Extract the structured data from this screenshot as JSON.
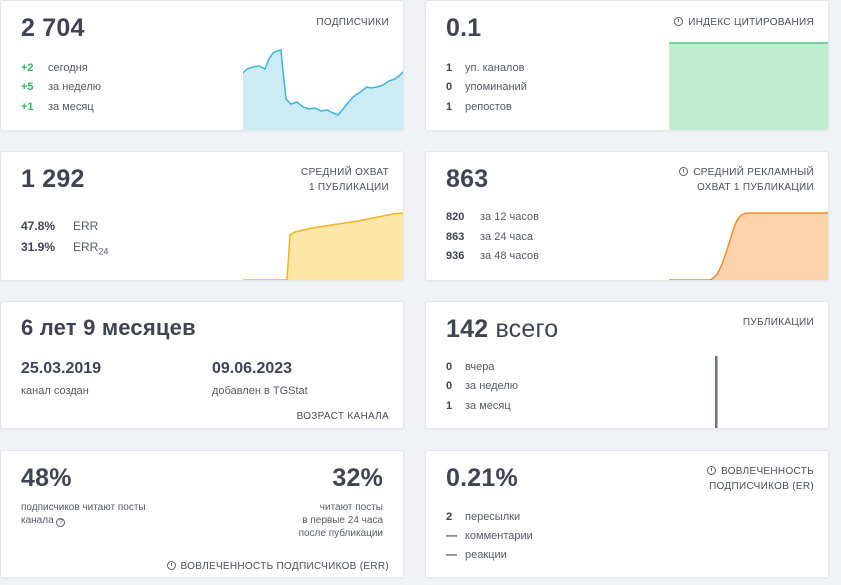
{
  "subscribers": {
    "value": "2 704",
    "caption": "ПОДПИСЧИКИ",
    "changes": [
      {
        "delta": "+2",
        "label": "сегодня"
      },
      {
        "delta": "+5",
        "label": "за неделю"
      },
      {
        "delta": "+1",
        "label": "за месяц"
      }
    ]
  },
  "citation": {
    "value": "0.1",
    "caption": "ИНДЕКС ЦИТИРОВАНИЯ",
    "stats": [
      {
        "n": "1",
        "label": "уп. каналов"
      },
      {
        "n": "0",
        "label": "упоминаний"
      },
      {
        "n": "1",
        "label": "репостов"
      }
    ]
  },
  "avg_reach": {
    "value": "1 292",
    "caption_line1": "СРЕДНИЙ ОХВАТ",
    "caption_line2": "1 ПУБЛИКАЦИИ",
    "err": {
      "value": "47.8%",
      "label": "ERR"
    },
    "err24": {
      "value": "31.9%",
      "label": "ERR",
      "label_sub": "24"
    }
  },
  "ad_reach": {
    "value": "863",
    "caption_line1": "СРЕДНИЙ РЕКЛАМНЫЙ",
    "caption_line2": "ОХВАТ 1 ПУБЛИКАЦИИ",
    "stats": [
      {
        "n": "820",
        "label": "за 12 часов"
      },
      {
        "n": "863",
        "label": "за 24 часа"
      },
      {
        "n": "936",
        "label": "за 48 часов"
      }
    ]
  },
  "age": {
    "value": "6 лет 9 месяцев",
    "created_date": "25.03.2019",
    "created_label": "канал создан",
    "added_date": "09.06.2023",
    "added_label": "добавлен в TGStat",
    "caption": "ВОЗРАСТ КАНАЛА"
  },
  "publications": {
    "value": "142",
    "value_suffix": "всего",
    "caption": "ПУБЛИКАЦИИ",
    "stats": [
      {
        "n": "0",
        "label": "вчера"
      },
      {
        "n": "0",
        "label": "за неделю"
      },
      {
        "n": "1",
        "label": "за месяц"
      }
    ]
  },
  "engagement": {
    "left_value": "48%",
    "left_text_line1": "подписчиков читают посты",
    "left_text_line2": "канала",
    "right_value": "32%",
    "right_text_line1": "читают посты",
    "right_text_line2": "в первые 24 часа",
    "right_text_line3": "после публикации",
    "caption": "ВОВЛЕЧЕННОСТЬ ПОДПИСЧИКОВ (ERR)"
  },
  "er": {
    "value": "0.21%",
    "caption_line1": "ВОВЛЕЧЕННОСТЬ",
    "caption_line2": "ПОДПИСЧИКОВ (ER)",
    "stats": [
      {
        "n": "2",
        "label": "пересылки"
      },
      {
        "n": "—",
        "label": "комментарии"
      },
      {
        "n": "—",
        "label": "реакции"
      }
    ]
  },
  "colors": {
    "subscribers_line": "#3bb6d8",
    "subscribers_fill": "#cdebf5",
    "citation_line": "#4bc77a",
    "citation_fill": "#c2ecd0",
    "reach_line": "#f2b41c",
    "reach_fill": "#fde7a8",
    "ad_line": "#f08a2a",
    "ad_fill": "#fcd3aa",
    "pubs_bar": "#6b7482",
    "delta_positive": "#2fb866"
  }
}
